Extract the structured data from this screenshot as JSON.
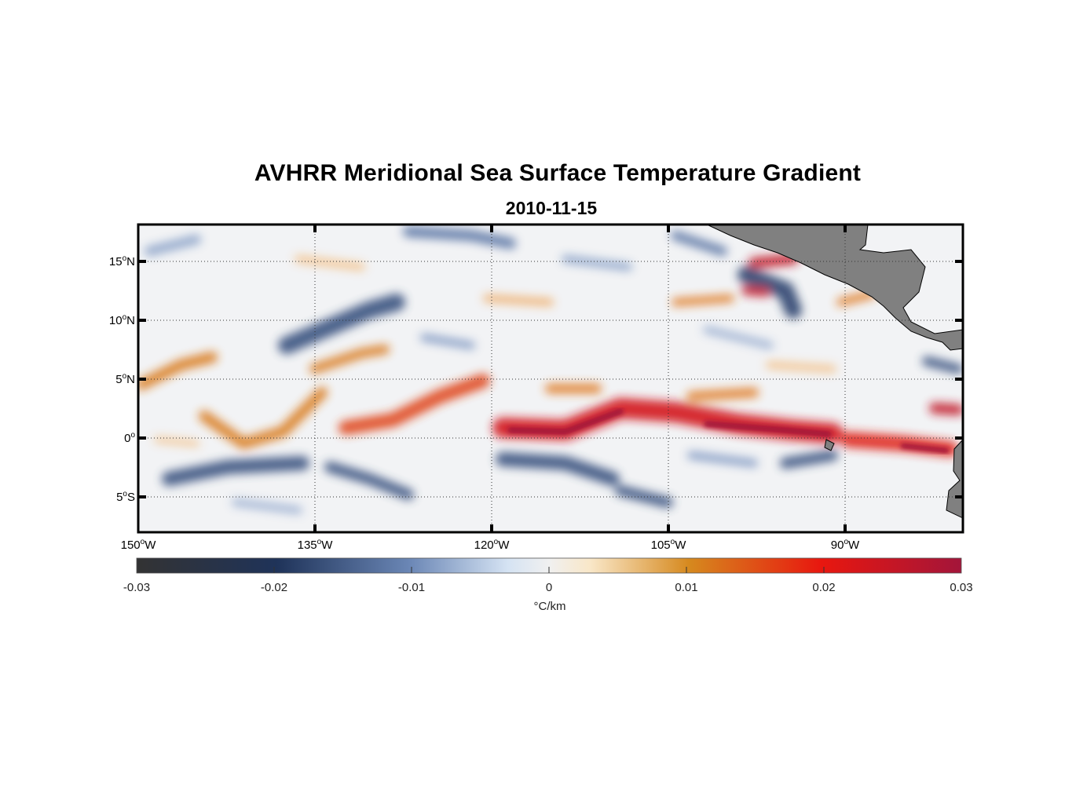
{
  "figure": {
    "title": "AVHRR Meridional Sea Surface Temperature Gradient",
    "subtitle": "2010-11-15"
  },
  "map": {
    "lon_range": [
      -150,
      -80
    ],
    "lat_range": [
      -8,
      18
    ],
    "grid": true,
    "land_color": "#808080",
    "lat_ticks": [
      {
        "deg": "15",
        "hemi": "N"
      },
      {
        "deg": "10",
        "hemi": "N"
      },
      {
        "deg": "5",
        "hemi": "N"
      },
      {
        "deg": "0",
        "hemi": ""
      },
      {
        "deg": "5",
        "hemi": "S"
      }
    ],
    "lon_ticks": [
      {
        "deg": "150",
        "hemi": "W"
      },
      {
        "deg": "135",
        "hemi": "W"
      },
      {
        "deg": "120",
        "hemi": "W"
      },
      {
        "deg": "105",
        "hemi": "W"
      },
      {
        "deg": "90",
        "hemi": "W"
      }
    ]
  },
  "colorbar": {
    "ticks": [
      "-0.03",
      "-0.02",
      "-0.01",
      "0",
      "0.01",
      "0.02",
      "0.03"
    ],
    "unit": "°C/km",
    "colors": [
      "#333333",
      "#1f3359",
      "#6a86b5",
      "#f0f0f0",
      "#d6891e",
      "#e8170f",
      "#a3153a"
    ]
  }
}
